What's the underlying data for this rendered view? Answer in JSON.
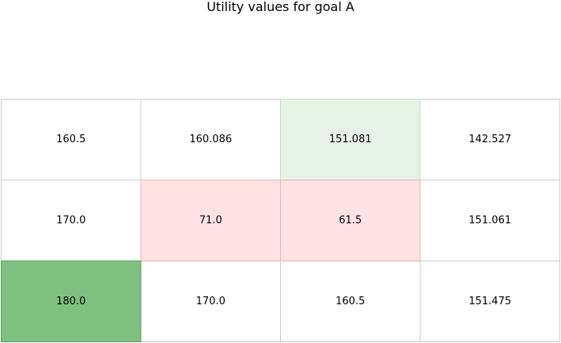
{
  "chart_data": {
    "type": "heatmap",
    "title": "Utility values for goal A",
    "rows": 3,
    "cols": 4,
    "values": [
      [
        "160.5",
        "160.086",
        "151.081",
        "142.527"
      ],
      [
        "170.0",
        "71.0",
        "61.5",
        "151.061"
      ],
      [
        "180.0",
        "170.0",
        "160.5",
        "151.475"
      ]
    ],
    "highlights": [
      {
        "row": 0,
        "col": 2,
        "kind": "goal",
        "color": "#e6f2e6"
      },
      {
        "row": 1,
        "col": 1,
        "kind": "obstacle",
        "color": "#ffe2e4"
      },
      {
        "row": 1,
        "col": 2,
        "kind": "obstacle",
        "color": "#ffe2e4"
      },
      {
        "row": 2,
        "col": 0,
        "kind": "start",
        "color": "#80c080"
      }
    ],
    "default_cell_color": "#ffffff",
    "grid_line_color": "#cccccc"
  }
}
